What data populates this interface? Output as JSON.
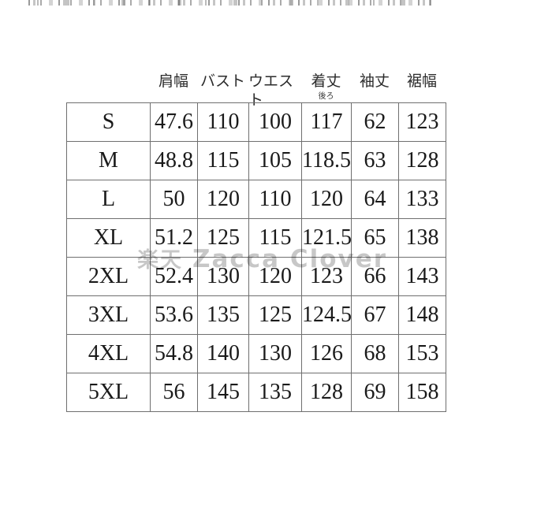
{
  "watermark": {
    "cjk": "楽天",
    "latin": "Zacca Clover"
  },
  "chart_data": {
    "type": "table",
    "column_headers": [
      "肩幅",
      "バスト",
      "ウエスト",
      "着丈",
      "袖丈",
      "裾幅"
    ],
    "length_column_note": "後ろ",
    "row_labels": [
      "S",
      "M",
      "L",
      "XL",
      "2XL",
      "3XL",
      "4XL",
      "5XL"
    ],
    "rows": [
      [
        47.6,
        110,
        100,
        117,
        62,
        123
      ],
      [
        48.8,
        115,
        105,
        118.5,
        63,
        128
      ],
      [
        50,
        120,
        110,
        120,
        64,
        133
      ],
      [
        51.2,
        125,
        115,
        121.5,
        65,
        138
      ],
      [
        52.4,
        130,
        120,
        123,
        66,
        143
      ],
      [
        53.6,
        135,
        125,
        124.5,
        67,
        148
      ],
      [
        54.8,
        140,
        130,
        126,
        68,
        153
      ],
      [
        56,
        145,
        135,
        128,
        69,
        158
      ]
    ]
  },
  "colors": {
    "border": "#6f6f6f",
    "text": "#1a1a1a",
    "watermark": "#c6c6c6",
    "background": "#ffffff"
  }
}
